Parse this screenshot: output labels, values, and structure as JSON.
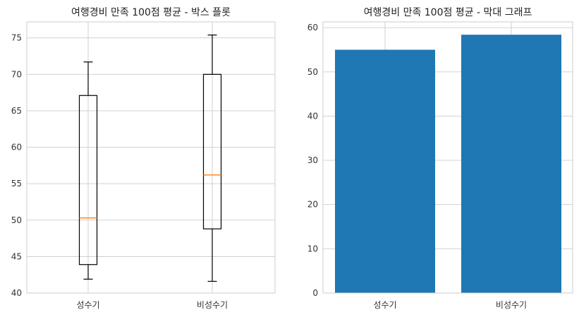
{
  "chart_data": [
    {
      "type": "box",
      "title": "여행경비 만족 100점 평균 - 박스 플롯",
      "categories": [
        "성수기",
        "비성수기"
      ],
      "boxes": [
        {
          "whislo": 41.9,
          "q1": 43.9,
          "med": 50.3,
          "q3": 67.1,
          "whishi": 71.7
        },
        {
          "whislo": 41.6,
          "q1": 48.8,
          "med": 56.2,
          "q3": 70.0,
          "whishi": 75.4
        }
      ],
      "ylim": [
        40,
        77.2
      ],
      "yticks": [
        40,
        45,
        50,
        55,
        60,
        65,
        70,
        75
      ],
      "grid": true,
      "colors": {
        "box": "#000000",
        "median": "#ff7f0e",
        "grid": "#cccccc"
      }
    },
    {
      "type": "bar",
      "title": "여행경비 만족 100점 평균 - 막대 그래프",
      "categories": [
        "성수기",
        "비성수기"
      ],
      "values": [
        55.0,
        58.4
      ],
      "ylim": [
        0,
        61.3
      ],
      "yticks": [
        0,
        10,
        20,
        30,
        40,
        50,
        60
      ],
      "grid": true,
      "colors": {
        "bar": "#1f77b4",
        "grid": "#cccccc"
      }
    }
  ]
}
